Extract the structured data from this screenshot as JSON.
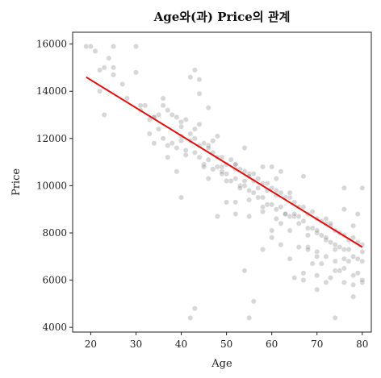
{
  "chart_data": {
    "type": "scatter",
    "title": "Age와(과) Price의 관계",
    "xlabel": "Age",
    "ylabel": "Price",
    "xlim": [
      16,
      82
    ],
    "ylim": [
      3800,
      16500
    ],
    "xticks": [
      20,
      30,
      40,
      50,
      60,
      70,
      80
    ],
    "yticks": [
      4000,
      6000,
      8000,
      10000,
      12000,
      14000,
      16000
    ],
    "grid": false,
    "point_color": "#8c8c8c",
    "trend_color": "#e01010",
    "trend_line": {
      "x": [
        19,
        80
      ],
      "y": [
        14600,
        7400
      ]
    },
    "points": {
      "x": [
        19,
        20,
        21,
        22,
        22,
        23,
        23,
        24,
        25,
        25,
        27,
        30,
        30,
        31,
        32,
        33,
        33,
        34,
        34,
        35,
        35,
        36,
        36,
        37,
        37,
        38,
        38,
        39,
        39,
        40,
        40,
        41,
        41,
        42,
        42,
        43,
        43,
        44,
        44,
        45,
        45,
        46,
        46,
        47,
        47,
        48,
        48,
        49,
        49,
        50,
        50,
        51,
        51,
        52,
        52,
        53,
        53,
        54,
        54,
        55,
        55,
        56,
        56,
        57,
        57,
        58,
        58,
        59,
        59,
        60,
        60,
        61,
        61,
        62,
        62,
        63,
        63,
        64,
        64,
        65,
        65,
        66,
        66,
        67,
        67,
        68,
        68,
        69,
        69,
        70,
        70,
        71,
        71,
        72,
        72,
        73,
        73,
        74,
        74,
        75,
        75,
        76,
        76,
        77,
        77,
        78,
        78,
        79,
        79,
        80,
        80,
        43,
        42,
        44,
        43,
        45,
        46,
        52,
        54,
        55,
        56,
        57,
        61,
        63,
        66,
        68,
        70,
        71,
        73,
        74,
        76,
        77,
        79,
        80,
        39,
        40,
        48,
        50,
        52,
        54,
        58,
        60,
        62,
        64,
        67,
        69,
        72,
        75,
        78,
        80,
        36,
        40,
        41,
        44,
        47,
        49,
        53,
        55,
        59,
        61,
        65,
        68,
        70,
        72,
        74,
        76,
        78,
        55,
        58,
        60,
        62,
        65,
        67,
        70,
        72,
        74,
        76,
        78,
        80,
        25,
        28,
        31,
        34,
        37,
        40,
        43,
        46,
        49,
        52,
        55,
        58,
        61,
        64,
        67,
        70,
        73,
        76,
        79,
        42,
        44,
        46,
        48,
        50,
        52,
        54,
        56,
        58,
        60,
        62,
        64,
        66,
        68,
        70,
        72,
        74,
        76,
        78,
        80
      ],
      "y": [
        15900,
        15900,
        15700,
        14900,
        14000,
        15000,
        13000,
        15400,
        15900,
        15000,
        14300,
        15900,
        14800,
        13200,
        13400,
        12800,
        12200,
        12900,
        11800,
        13000,
        12400,
        13400,
        12000,
        13200,
        11700,
        13000,
        11800,
        12900,
        11600,
        12700,
        11900,
        12800,
        11500,
        12200,
        11900,
        12000,
        11400,
        11700,
        11200,
        11800,
        10900,
        11700,
        11100,
        11400,
        10700,
        11200,
        10800,
        11200,
        10600,
        10900,
        10500,
        11100,
        10200,
        10700,
        10300,
        10700,
        10000,
        10600,
        10000,
        10500,
        9800,
        10200,
        9700,
        10300,
        9500,
        10100,
        9500,
        10100,
        9200,
        9900,
        9200,
        9800,
        9000,
        9700,
        9100,
        9500,
        8800,
        9500,
        8700,
        9300,
        8700,
        9100,
        8400,
        9100,
        8500,
        8800,
        8200,
        8900,
        8200,
        8600,
        8000,
        8500,
        7900,
        8600,
        7700,
        8300,
        7600,
        8100,
        7500,
        8000,
        7400,
        7900,
        7300,
        7700,
        7300,
        7800,
        7000,
        7600,
        6900,
        7500,
        7200,
        14900,
        14600,
        13900,
        4800,
        10800,
        10300,
        10900,
        10200,
        9400,
        5100,
        9900,
        10300,
        8800,
        8700,
        7900,
        6200,
        6700,
        6100,
        6400,
        5900,
        6800,
        6300,
        5900,
        10600,
        9500,
        8700,
        9300,
        8800,
        6400,
        7300,
        8100,
        7500,
        6900,
        6300,
        6700,
        5900,
        6400,
        5800,
        6800,
        13700,
        12500,
        11300,
        12600,
        11900,
        10500,
        9900,
        8700,
        9800,
        8600,
        8800,
        7400,
        7200,
        7000,
        6800,
        6500,
        6200,
        4400,
        8900,
        7800,
        8400,
        6100,
        6000,
        5600,
        7800,
        4400,
        6900,
        5300,
        6000,
        14700,
        13700,
        13400,
        12900,
        11200,
        12100,
        12400,
        11600,
        10800,
        10900,
        10400,
        10800,
        9600,
        9700,
        10400,
        8100,
        8400,
        9000,
        8800,
        4400,
        14500,
        13300,
        12100,
        10200,
        9300,
        11600,
        10500,
        9100,
        10800,
        10600,
        8100,
        7400,
        7300,
        7000,
        8400,
        7300,
        9900,
        8300,
        9900
      ]
    }
  }
}
